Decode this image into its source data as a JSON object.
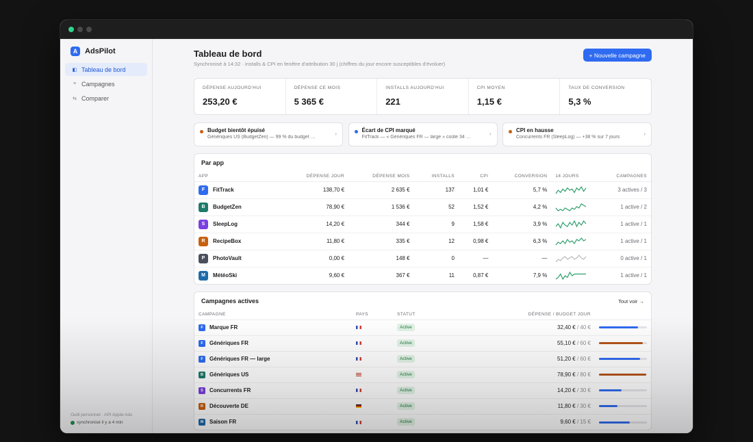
{
  "app": {
    "name": "AdsPilot",
    "logo_letter": "A"
  },
  "sidebar": {
    "items": [
      {
        "label": "Tableau de bord",
        "icon": "dashboard-icon",
        "glyph": "◧",
        "active": true
      },
      {
        "label": "Campagnes",
        "icon": "list-icon",
        "glyph": "≡",
        "active": false
      },
      {
        "label": "Comparer",
        "icon": "compare-icon",
        "glyph": "⇆",
        "active": false
      }
    ],
    "footer_line1": "Outil personnel · API Apple Ads",
    "footer_line2": "synchronisé il y a 4 min"
  },
  "header": {
    "title": "Tableau de bord",
    "subtitle": "Synchronisé à 14:32 · installs & CPI en fenêtre d'attribution 30 j (chiffres du jour encore susceptibles d'évoluer)",
    "new_campaign_label": "+ Nouvelle campagne"
  },
  "kpis": [
    {
      "label": "DÉPENSE AUJOURD'HUI",
      "value": "253,20 €"
    },
    {
      "label": "DÉPENSE CE MOIS",
      "value": "5 365 €"
    },
    {
      "label": "INSTALLS AUJOURD'HUI",
      "value": "221"
    },
    {
      "label": "CPI MOYEN",
      "value": "1,15 €"
    },
    {
      "label": "TAUX DE CONVERSION",
      "value": "5,3 %"
    }
  ],
  "alerts": [
    {
      "title": "Budget bientôt épuisé",
      "text": "Génériques US (BudgetZen) — 99 % du budget …",
      "color": "#c8600e"
    },
    {
      "title": "Écart de CPI marqué",
      "text": "FitTrack — « Génériques FR — large » coûte 34 …",
      "color": "#2f6bf0"
    },
    {
      "title": "CPI en hausse",
      "text": "Concurrents FR (SleepLog) — +38 % sur 7 jours",
      "color": "#c8600e"
    }
  ],
  "by_app": {
    "title": "Par app",
    "columns": [
      "APP",
      "DÉPENSE JOUR",
      "DÉPENSE MOIS",
      "INSTALLS",
      "CPI",
      "CONVERSION",
      "14 JOURS",
      "CAMPAGNES"
    ],
    "rows": [
      {
        "letter": "F",
        "color": "#2f6bf0",
        "name": "FitTrack",
        "spend_day": "138,70 €",
        "spend_month": "2 635 €",
        "installs": "137",
        "cpi": "1,01 €",
        "conversion": "5,7 %",
        "trend": [
          3,
          6,
          4,
          7,
          5,
          8,
          6,
          7,
          4,
          8,
          6,
          9,
          5,
          8
        ],
        "active": true,
        "campaigns": "3 actives / 3"
      },
      {
        "letter": "B",
        "color": "#1f7a6a",
        "name": "BudgetZen",
        "spend_day": "78,90 €",
        "spend_month": "1 536 €",
        "installs": "52",
        "cpi": "1,52 €",
        "conversion": "4,2 %",
        "trend": [
          5,
          3,
          4,
          3,
          5,
          4,
          3,
          5,
          4,
          6,
          5,
          8,
          7,
          6
        ],
        "active": true,
        "campaigns": "1 active / 2"
      },
      {
        "letter": "S",
        "color": "#7a3fe0",
        "name": "SleepLog",
        "spend_day": "14,20 €",
        "spend_month": "344 €",
        "installs": "9",
        "cpi": "1,58 €",
        "conversion": "3,9 %",
        "trend": [
          4,
          6,
          3,
          7,
          5,
          4,
          7,
          5,
          8,
          4,
          7,
          5,
          8,
          6
        ],
        "active": true,
        "campaigns": "1 active / 1"
      },
      {
        "letter": "R",
        "color": "#c8600e",
        "name": "RecipeBox",
        "spend_day": "11,80 €",
        "spend_month": "335 €",
        "installs": "12",
        "cpi": "0,98 €",
        "conversion": "6,3 %",
        "trend": [
          3,
          5,
          4,
          6,
          4,
          7,
          5,
          6,
          4,
          7,
          6,
          8,
          6,
          7
        ],
        "active": true,
        "campaigns": "1 active / 1"
      },
      {
        "letter": "P",
        "color": "#4a4f5c",
        "name": "PhotoVault",
        "spend_day": "0,00 €",
        "spend_month": "148 €",
        "installs": "0",
        "cpi": "—",
        "conversion": "—",
        "trend": [
          3,
          5,
          4,
          6,
          7,
          5,
          6,
          7,
          5,
          6,
          8,
          6,
          5,
          7
        ],
        "active": false,
        "campaigns": "0 active / 1"
      },
      {
        "letter": "M",
        "color": "#1f6aa8",
        "name": "MétéoSki",
        "spend_day": "9,60 €",
        "spend_month": "367 €",
        "installs": "11",
        "cpi": "0,87 €",
        "conversion": "7,9 %",
        "trend": [
          3,
          4,
          6,
          3,
          5,
          4,
          7,
          5,
          6,
          6,
          6,
          6,
          6,
          6
        ],
        "active": true,
        "campaigns": "1 active / 1"
      }
    ]
  },
  "campaigns": {
    "title": "Campagnes actives",
    "see_all_label": "Tout voir →",
    "columns": [
      "CAMPAGNE",
      "PAYS",
      "STATUT",
      "DÉPENSE / BUDGET JOUR"
    ],
    "rows": [
      {
        "letter": "F",
        "color": "#2f6bf0",
        "name": "Marque FR",
        "country": "FR",
        "status": "Active",
        "spend": "32,40 €",
        "budget": "/ 40 €",
        "progress": 0.81,
        "bar_color": "#2f6bf0"
      },
      {
        "letter": "F",
        "color": "#2f6bf0",
        "name": "Génériques FR",
        "country": "FR",
        "status": "Active",
        "spend": "55,10 €",
        "budget": "/ 60 €",
        "progress": 0.92,
        "bar_color": "#b5541a"
      },
      {
        "letter": "F",
        "color": "#2f6bf0",
        "name": "Génériques FR — large",
        "country": "FR",
        "status": "Active",
        "spend": "51,20 €",
        "budget": "/ 60 €",
        "progress": 0.85,
        "bar_color": "#2f6bf0"
      },
      {
        "letter": "B",
        "color": "#1f7a6a",
        "name": "Génériques US",
        "country": "US",
        "status": "Active",
        "spend": "78,90 €",
        "budget": "/ 80 €",
        "progress": 0.99,
        "bar_color": "#b5541a"
      },
      {
        "letter": "S",
        "color": "#7a3fe0",
        "name": "Concurrents FR",
        "country": "FR",
        "status": "Active",
        "spend": "14,20 €",
        "budget": "/ 30 €",
        "progress": 0.47,
        "bar_color": "#2f6bf0"
      },
      {
        "letter": "R",
        "color": "#c8600e",
        "name": "Découverte DE",
        "country": "DE",
        "status": "Active",
        "spend": "11,80 €",
        "budget": "/ 30 €",
        "progress": 0.39,
        "bar_color": "#2f6bf0"
      },
      {
        "letter": "M",
        "color": "#1f6aa8",
        "name": "Saison FR",
        "country": "FR",
        "status": "Active",
        "spend": "9,60 €",
        "budget": "/ 15 €",
        "progress": 0.64,
        "bar_color": "#2f6bf0"
      }
    ]
  },
  "colors": {
    "accent": "#2f6bf0",
    "positive": "#2e9e6b",
    "warning": "#c8600e",
    "spark_inactive": "#b8b8bd"
  }
}
